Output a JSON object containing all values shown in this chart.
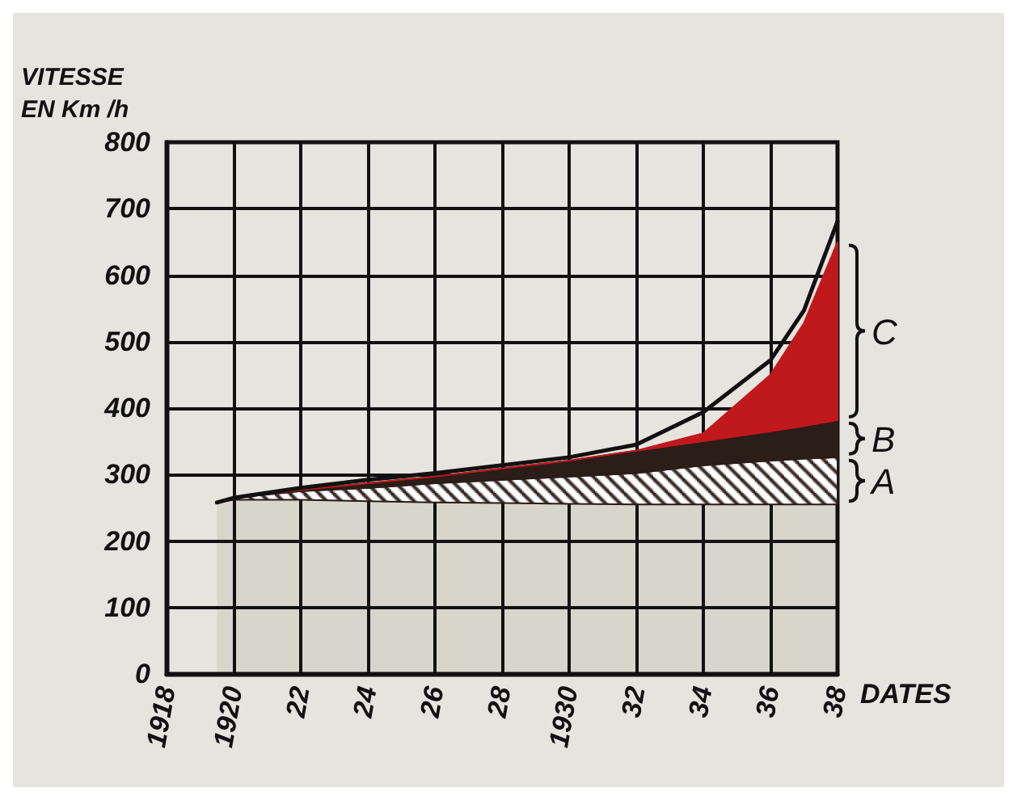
{
  "chart_data": {
    "type": "area",
    "stacked": true,
    "ylabel": "VITESSE\nEN Km /h",
    "xlabel": "DATES",
    "x": [
      1919.5,
      1920,
      1922,
      1924,
      1926,
      1928,
      1930,
      1932,
      1934,
      1936,
      1937,
      1938
    ],
    "xlim": [
      1918,
      1938
    ],
    "xticks": [
      1918,
      1920,
      {
        "value": 1922,
        "label": "22"
      },
      {
        "value": 1924,
        "label": "24"
      },
      {
        "value": 1926,
        "label": "26"
      },
      {
        "value": 1928,
        "label": "28"
      },
      1930,
      {
        "value": 1932,
        "label": "32"
      },
      {
        "value": 1934,
        "label": "34"
      },
      {
        "value": 1936,
        "label": "36"
      },
      {
        "value": 1938,
        "label": "38"
      }
    ],
    "ylim": [
      0,
      800
    ],
    "yticks": [
      0,
      100,
      200,
      300,
      400,
      500,
      600,
      700,
      800
    ],
    "grid": true,
    "legend": false,
    "series": [
      {
        "color": "#d8d5cc",
        "values": [
          258,
          262,
          262,
          260,
          258,
          257,
          256,
          255,
          255,
          255,
          255,
          255
        ]
      },
      {
        "name": "A",
        "color": "#2a1a14",
        "values": [
          0,
          3,
          13,
          20,
          29,
          35,
          41,
          47,
          59,
          66,
          69,
          71
        ]
      },
      {
        "name": "B",
        "color": "#2b1d17",
        "values": [
          0,
          0,
          2,
          7,
          10,
          17,
          24,
          34,
          36,
          44,
          49,
          56
        ]
      },
      {
        "name": "C",
        "color": "#c0191c",
        "values": [
          0,
          0,
          0,
          0,
          0,
          0,
          0,
          0,
          12,
          85,
          155,
          268
        ]
      },
      {
        "type": "line",
        "color": "#111111",
        "values": [
          258,
          265,
          280,
          292,
          302,
          314,
          326,
          345,
          394,
          472,
          547,
          681
        ]
      }
    ]
  }
}
